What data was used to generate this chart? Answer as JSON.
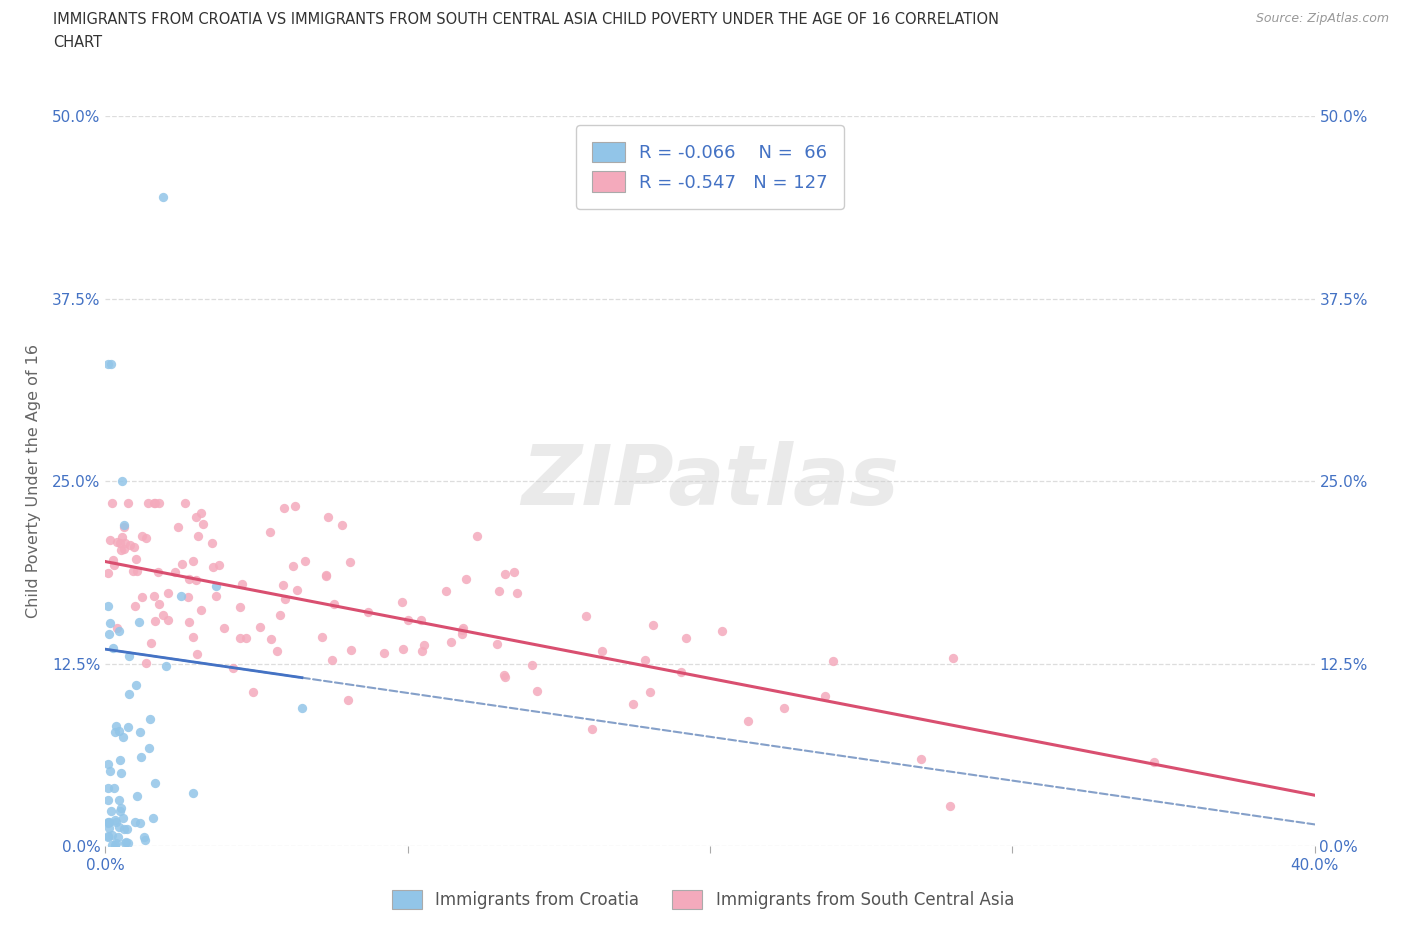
{
  "title_line1": "IMMIGRANTS FROM CROATIA VS IMMIGRANTS FROM SOUTH CENTRAL ASIA CHILD POVERTY UNDER THE AGE OF 16 CORRELATION",
  "title_line2": "CHART",
  "source": "Source: ZipAtlas.com",
  "ylabel": "Child Poverty Under the Age of 16",
  "xlim": [
    0.0,
    0.4
  ],
  "ylim": [
    0.0,
    0.5
  ],
  "croatia_color": "#92C5E8",
  "sca_color": "#F4AABC",
  "croatia_R": -0.066,
  "croatia_N": 66,
  "sca_R": -0.547,
  "sca_N": 127,
  "legend_label_croatia": "Immigrants from Croatia",
  "legend_label_sca": "Immigrants from South Central Asia",
  "watermark": "ZIPatlas",
  "background_color": "#ffffff",
  "tick_label_color": "#4472C4",
  "title_color": "#333333",
  "source_color": "#999999",
  "ylabel_color": "#666666",
  "grid_color": "#DDDDDD",
  "trend_croatia_color": "#4472C4",
  "trend_sca_color": "#D94F70",
  "trend_dashed_color": "#7090C0"
}
